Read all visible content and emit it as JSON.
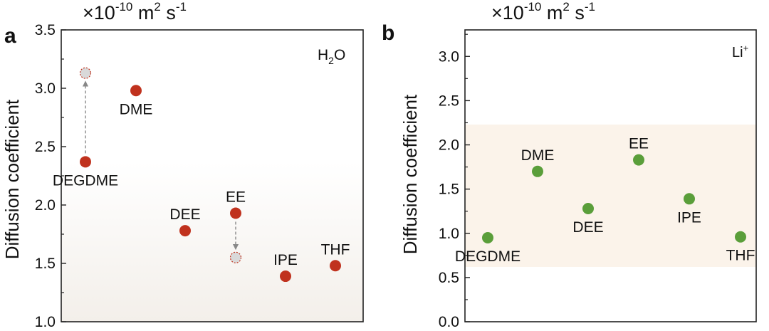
{
  "chart_data": [
    {
      "panel_label": "a",
      "type": "scatter",
      "unit": "×10-10 m2 s-1",
      "unit_parts": {
        "prefix": "×10",
        "exp": "-10",
        "m": " m",
        "m_exp": "2",
        "s": " s",
        "s_exp": "-1"
      },
      "legend": {
        "text": "H",
        "sub": "2",
        "tail": "O",
        "placement": "top-right"
      },
      "ylabel": "Diffusion coefficient",
      "ylim": [
        1.0,
        3.5
      ],
      "yticks": [
        "1.0",
        "1.5",
        "2.0",
        "2.5",
        "3.0",
        "3.5"
      ],
      "x_positions": [
        1,
        2,
        3,
        4,
        5,
        6
      ],
      "shaded_band": [
        1.0,
        2.37
      ],
      "points": [
        {
          "label": "DEGDME",
          "x": 1,
          "y": 2.37,
          "color": "#c0321e",
          "label_pos": "below"
        },
        {
          "label": "DME",
          "x": 2,
          "y": 2.98,
          "color": "#c0321e",
          "label_pos": "below"
        },
        {
          "label": "DEE",
          "x": 3,
          "y": 1.78,
          "color": "#c0321e",
          "label_pos": "above"
        },
        {
          "label": "EE",
          "x": 4,
          "y": 1.93,
          "color": "#c0321e",
          "label_pos": "above"
        },
        {
          "label": "IPE",
          "x": 5,
          "y": 1.39,
          "color": "#c0321e",
          "label_pos": "above"
        },
        {
          "label": "THF",
          "x": 6,
          "y": 1.48,
          "color": "#c0321e",
          "label_pos": "above"
        }
      ],
      "ghost_points": [
        {
          "x": 1,
          "y": 3.13,
          "from_y": 2.37
        },
        {
          "x": 4,
          "y": 1.55,
          "from_y": 1.93
        }
      ]
    },
    {
      "panel_label": "b",
      "type": "scatter",
      "unit": "×10-10 m2 s-1",
      "unit_parts": {
        "prefix": "×10",
        "exp": "-10",
        "m": " m",
        "m_exp": "2",
        "s": " s",
        "s_exp": "-1"
      },
      "legend": {
        "text": "Li",
        "sup": "+",
        "placement": "top-right"
      },
      "ylabel": "Diffusion coefficient",
      "ylim": [
        0.0,
        3.3
      ],
      "yticks": [
        "0.0",
        "0.5",
        "1.0",
        "1.5",
        "2.0",
        "2.5",
        "3.0"
      ],
      "x_positions": [
        1,
        2,
        3,
        4,
        5,
        6
      ],
      "shaded_band": [
        0.62,
        2.23
      ],
      "points": [
        {
          "label": "DEGDME",
          "x": 1,
          "y": 0.95,
          "color": "#5a9e3a",
          "label_pos": "below"
        },
        {
          "label": "DME",
          "x": 2,
          "y": 1.7,
          "color": "#5a9e3a",
          "label_pos": "above"
        },
        {
          "label": "DEE",
          "x": 3,
          "y": 1.28,
          "color": "#5a9e3a",
          "label_pos": "below"
        },
        {
          "label": "EE",
          "x": 4,
          "y": 1.83,
          "color": "#5a9e3a",
          "label_pos": "above"
        },
        {
          "label": "IPE",
          "x": 5,
          "y": 1.39,
          "color": "#5a9e3a",
          "label_pos": "below"
        },
        {
          "label": "THF",
          "x": 6,
          "y": 0.96,
          "color": "#5a9e3a",
          "label_pos": "below"
        }
      ]
    }
  ]
}
